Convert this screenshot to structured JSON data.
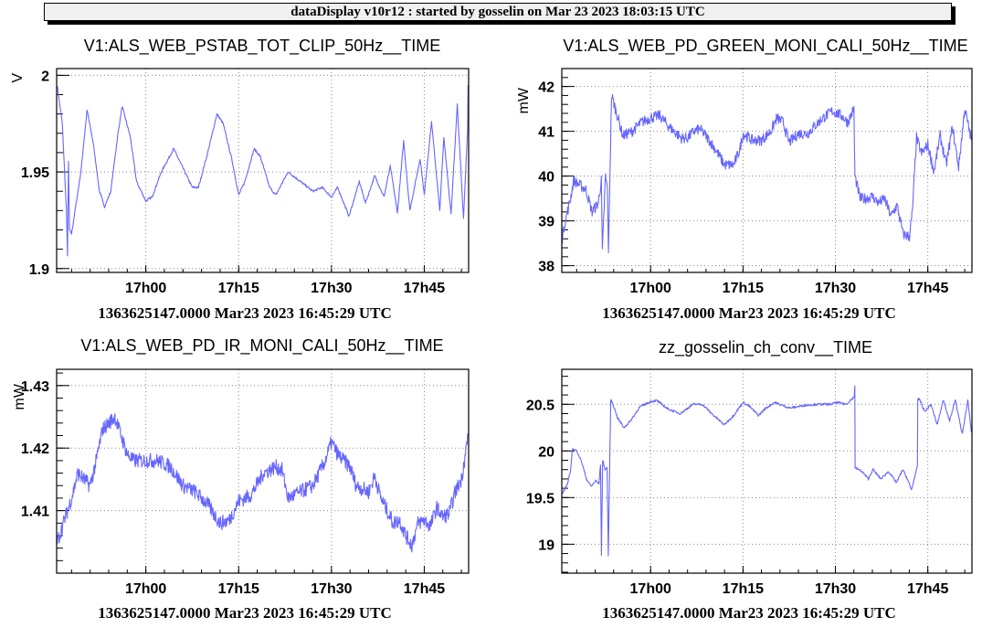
{
  "banner": "dataDisplay v10r12 : started by gosselin on Mar 23 2023 18:03:15 UTC",
  "colors": {
    "series": "#6666ff",
    "grid": "#888888",
    "banner_bg": "#f0f0f0"
  },
  "chart_data": [
    {
      "type": "line",
      "title": "V1:ALS_WEB_PSTAB_TOT_CLIP_50Hz__TIME",
      "ylabel": "V",
      "xlabel": "1363625147.0000 Mar23 2023 16:45:29 UTC",
      "xlim": [
        "16:45:35",
        "17:52:10"
      ],
      "ylim": [
        1.898,
        2.0035
      ],
      "xticks": [
        {
          "t": "17:00:00",
          "label": "17h00"
        },
        {
          "t": "17:15:00",
          "label": "17h15"
        },
        {
          "t": "17:30:00",
          "label": "17h30"
        },
        {
          "t": "17:45:00",
          "label": "17h45"
        }
      ],
      "yticks": [
        {
          "v": 1.9,
          "label": "1.9"
        },
        {
          "v": 1.95,
          "label": "1.95"
        },
        {
          "v": 2.0,
          "label": "2"
        }
      ],
      "yminor": 0.01,
      "grid": true,
      "points": [
        [
          "16:45:40",
          1.995
        ],
        [
          "16:46:30",
          1.975
        ],
        [
          "16:47:10",
          1.93
        ],
        [
          "16:47:20",
          1.907
        ],
        [
          "16:47:30",
          1.955
        ],
        [
          "16:47:40",
          1.92
        ],
        [
          "16:48:00",
          1.918
        ],
        [
          "16:49:30",
          1.95
        ],
        [
          "16:50:30",
          1.982
        ],
        [
          "16:51:30",
          1.965
        ],
        [
          "16:52:30",
          1.94
        ],
        [
          "16:53:20",
          1.932
        ],
        [
          "16:54:20",
          1.94
        ],
        [
          "16:55:30",
          1.97
        ],
        [
          "16:56:10",
          1.984
        ],
        [
          "16:57:30",
          1.968
        ],
        [
          "16:58:30",
          1.945
        ],
        [
          "17:00:00",
          1.935
        ],
        [
          "17:01:00",
          1.937
        ],
        [
          "17:02:30",
          1.95
        ],
        [
          "17:04:30",
          1.962
        ],
        [
          "17:06:00",
          1.952
        ],
        [
          "17:07:30",
          1.942
        ],
        [
          "17:08:30",
          1.942
        ],
        [
          "17:10:00",
          1.96
        ],
        [
          "17:11:30",
          1.98
        ],
        [
          "17:12:30",
          1.975
        ],
        [
          "17:14:00",
          1.955
        ],
        [
          "17:15:00",
          1.938
        ],
        [
          "17:16:00",
          1.945
        ],
        [
          "17:17:30",
          1.962
        ],
        [
          "17:18:30",
          1.958
        ],
        [
          "17:20:00",
          1.942
        ],
        [
          "17:21:00",
          1.938
        ],
        [
          "17:23:00",
          1.95
        ],
        [
          "17:25:00",
          1.945
        ],
        [
          "17:27:00",
          1.94
        ],
        [
          "17:28:30",
          1.942
        ],
        [
          "17:30:00",
          1.937
        ],
        [
          "17:31:00",
          1.942
        ],
        [
          "17:32:50",
          1.927
        ],
        [
          "17:34:30",
          1.945
        ],
        [
          "17:35:30",
          1.934
        ],
        [
          "17:37:00",
          1.948
        ],
        [
          "17:38:30",
          1.937
        ],
        [
          "17:39:30",
          1.953
        ],
        [
          "17:40:40",
          1.929
        ],
        [
          "17:41:40",
          1.966
        ],
        [
          "17:42:40",
          1.93
        ],
        [
          "17:44:20",
          1.957
        ],
        [
          "17:45:00",
          1.938
        ],
        [
          "17:46:10",
          1.976
        ],
        [
          "17:47:30",
          1.93
        ],
        [
          "17:48:10",
          1.968
        ],
        [
          "17:49:20",
          1.928
        ],
        [
          "17:50:20",
          1.985
        ],
        [
          "17:51:20",
          1.926
        ],
        [
          "17:52:00",
          1.972
        ],
        [
          "17:52:05",
          1.995
        ]
      ]
    },
    {
      "type": "line",
      "title": "V1:ALS_WEB_PD_GREEN_MONI_CALI_50Hz__TIME",
      "ylabel": "mW",
      "xlabel": "1363625147.0000 Mar23 2023 16:45:29 UTC",
      "xlim": [
        "16:45:35",
        "17:52:10"
      ],
      "ylim": [
        37.85,
        42.4
      ],
      "xticks": [
        {
          "t": "17:00:00",
          "label": "17h00"
        },
        {
          "t": "17:15:00",
          "label": "17h15"
        },
        {
          "t": "17:30:00",
          "label": "17h30"
        },
        {
          "t": "17:45:00",
          "label": "17h45"
        }
      ],
      "yticks": [
        {
          "v": 38,
          "label": "38"
        },
        {
          "v": 39,
          "label": "39"
        },
        {
          "v": 40,
          "label": "40"
        },
        {
          "v": 41,
          "label": "41"
        },
        {
          "v": 42,
          "label": "42"
        }
      ],
      "yminor": 0.2,
      "grid": true,
      "points": [
        [
          "16:45:40",
          38.6
        ],
        [
          "16:46:00",
          38.9
        ],
        [
          "16:47:00",
          39.5
        ],
        [
          "16:47:30",
          39.9
        ],
        [
          "16:48:30",
          39.8
        ],
        [
          "16:49:30",
          39.7
        ],
        [
          "16:50:30",
          39.2
        ],
        [
          "16:51:30",
          39.4
        ],
        [
          "16:52:00",
          39.9
        ],
        [
          "16:52:10",
          38.3
        ],
        [
          "16:52:40",
          40.0
        ],
        [
          "16:53:00",
          39.7
        ],
        [
          "16:53:10",
          38.2
        ],
        [
          "16:53:20",
          39.6
        ],
        [
          "16:53:40",
          41.8
        ],
        [
          "16:54:30",
          41.4
        ],
        [
          "16:55:30",
          40.9
        ],
        [
          "16:57:00",
          41.0
        ],
        [
          "16:58:30",
          41.2
        ],
        [
          "17:00:00",
          41.3
        ],
        [
          "17:01:30",
          41.35
        ],
        [
          "17:03:00",
          41.1
        ],
        [
          "17:05:00",
          40.85
        ],
        [
          "17:06:00",
          40.85
        ],
        [
          "17:07:00",
          41.0
        ],
        [
          "17:08:00",
          41.05
        ],
        [
          "17:09:00",
          40.9
        ],
        [
          "17:10:30",
          40.6
        ],
        [
          "17:12:00",
          40.25
        ],
        [
          "17:13:30",
          40.25
        ],
        [
          "17:14:30",
          40.6
        ],
        [
          "17:15:00",
          40.95
        ],
        [
          "17:16:30",
          40.8
        ],
        [
          "17:18:00",
          40.8
        ],
        [
          "17:19:30",
          41.0
        ],
        [
          "17:20:30",
          41.3
        ],
        [
          "17:21:30",
          41.2
        ],
        [
          "17:22:30",
          40.75
        ],
        [
          "17:24:00",
          40.95
        ],
        [
          "17:25:30",
          40.95
        ],
        [
          "17:26:30",
          41.1
        ],
        [
          "17:28:00",
          41.3
        ],
        [
          "17:29:30",
          41.45
        ],
        [
          "17:31:00",
          41.35
        ],
        [
          "17:32:00",
          41.2
        ],
        [
          "17:33:00",
          41.5
        ],
        [
          "17:33:10",
          40.0
        ],
        [
          "17:34:00",
          39.5
        ],
        [
          "17:35:00",
          39.5
        ],
        [
          "17:36:00",
          39.55
        ],
        [
          "17:37:00",
          39.4
        ],
        [
          "17:38:00",
          39.5
        ],
        [
          "17:39:00",
          39.1
        ],
        [
          "17:40:00",
          39.35
        ],
        [
          "17:41:00",
          38.7
        ],
        [
          "17:42:00",
          38.65
        ],
        [
          "17:42:30",
          39.2
        ],
        [
          "17:43:10",
          40.85
        ],
        [
          "17:44:00",
          40.5
        ],
        [
          "17:45:00",
          40.7
        ],
        [
          "17:46:00",
          40.1
        ],
        [
          "17:47:00",
          40.9
        ],
        [
          "17:48:00",
          40.25
        ],
        [
          "17:49:00",
          41.1
        ],
        [
          "17:50:00",
          40.2
        ],
        [
          "17:51:00",
          41.5
        ],
        [
          "17:52:05",
          40.8
        ]
      ]
    },
    {
      "type": "line",
      "title": "V1:ALS_WEB_PD_IR_MONI_CALI_50Hz__TIME",
      "ylabel": "mW",
      "xlabel": "1363625147.0000 Mar23 2023 16:45:29 UTC",
      "xlim": [
        "16:45:35",
        "17:52:10"
      ],
      "ylim": [
        1.4,
        1.4326
      ],
      "xticks": [
        {
          "t": "17:00:00",
          "label": "17h00"
        },
        {
          "t": "17:15:00",
          "label": "17h15"
        },
        {
          "t": "17:30:00",
          "label": "17h30"
        },
        {
          "t": "17:45:00",
          "label": "17h45"
        }
      ],
      "yticks": [
        {
          "v": 1.41,
          "label": "1.41"
        },
        {
          "v": 1.42,
          "label": "1.42"
        },
        {
          "v": 1.43,
          "label": "1.43"
        }
      ],
      "yminor": 0.002,
      "grid": true,
      "points": [
        [
          "16:45:40",
          1.405
        ],
        [
          "16:47:00",
          1.409
        ],
        [
          "16:48:00",
          1.412
        ],
        [
          "16:49:00",
          1.416
        ],
        [
          "16:50:00",
          1.415
        ],
        [
          "16:51:00",
          1.414
        ],
        [
          "16:52:00",
          1.418
        ],
        [
          "16:53:00",
          1.423
        ],
        [
          "16:54:00",
          1.424
        ],
        [
          "16:55:00",
          1.425
        ],
        [
          "16:56:00",
          1.422
        ],
        [
          "16:57:00",
          1.419
        ],
        [
          "16:58:00",
          1.418
        ],
        [
          "17:00:00",
          1.418
        ],
        [
          "17:02:00",
          1.418
        ],
        [
          "17:04:00",
          1.417
        ],
        [
          "17:06:00",
          1.414
        ],
        [
          "17:08:00",
          1.413
        ],
        [
          "17:10:00",
          1.411
        ],
        [
          "17:12:00",
          1.408
        ],
        [
          "17:13:30",
          1.4085
        ],
        [
          "17:15:00",
          1.4115
        ],
        [
          "17:17:00",
          1.4125
        ],
        [
          "17:19:00",
          1.416
        ],
        [
          "17:21:00",
          1.417
        ],
        [
          "17:22:00",
          1.4165
        ],
        [
          "17:23:00",
          1.412
        ],
        [
          "17:25:00",
          1.413
        ],
        [
          "17:27:00",
          1.414
        ],
        [
          "17:29:00",
          1.418
        ],
        [
          "17:30:00",
          1.421
        ],
        [
          "17:31:00",
          1.419
        ],
        [
          "17:33:00",
          1.417
        ],
        [
          "17:34:00",
          1.414
        ],
        [
          "17:36:00",
          1.413
        ],
        [
          "17:37:00",
          1.4155
        ],
        [
          "17:38:00",
          1.412
        ],
        [
          "17:39:00",
          1.41
        ],
        [
          "17:40:00",
          1.408
        ],
        [
          "17:41:00",
          1.4085
        ],
        [
          "17:42:00",
          1.406
        ],
        [
          "17:43:00",
          1.4045
        ],
        [
          "17:44:00",
          1.408
        ],
        [
          "17:45:00",
          1.4085
        ],
        [
          "17:46:00",
          1.4075
        ],
        [
          "17:47:00",
          1.4105
        ],
        [
          "17:48:00",
          1.409
        ],
        [
          "17:49:00",
          1.4095
        ],
        [
          "17:50:00",
          1.413
        ],
        [
          "17:51:00",
          1.415
        ],
        [
          "17:52:05",
          1.422
        ]
      ]
    },
    {
      "type": "line",
      "title": "zz_gosselin_ch_conv__TIME",
      "ylabel": "",
      "xlabel": "1363625147.0000 Mar23 2023 16:45:29 UTC",
      "xlim": [
        "16:45:35",
        "17:52:10"
      ],
      "ylim": [
        18.69,
        20.875
      ],
      "xticks": [
        {
          "t": "17:00:00",
          "label": "17h00"
        },
        {
          "t": "17:15:00",
          "label": "17h15"
        },
        {
          "t": "17:30:00",
          "label": "17h30"
        },
        {
          "t": "17:45:00",
          "label": "17h45"
        }
      ],
      "yticks": [
        {
          "v": 19,
          "label": "19"
        },
        {
          "v": 19.5,
          "label": "19.5"
        },
        {
          "v": 20,
          "label": "20"
        },
        {
          "v": 20.5,
          "label": "20.5"
        }
      ],
      "yminor": 0.1,
      "grid": true,
      "points": [
        [
          "16:45:40",
          19.54
        ],
        [
          "16:46:32",
          19.65
        ],
        [
          "16:47:02",
          19.8
        ],
        [
          "16:47:17",
          20.02
        ],
        [
          "16:48:03",
          20.0
        ],
        [
          "16:48:49",
          19.88
        ],
        [
          "16:49:35",
          19.7
        ],
        [
          "16:50:20",
          19.62
        ],
        [
          "16:51:06",
          19.68
        ],
        [
          "16:51:37",
          19.65
        ],
        [
          "16:51:52",
          19.85
        ],
        [
          "16:52:01",
          18.88
        ],
        [
          "16:52:13",
          19.9
        ],
        [
          "16:52:38",
          19.8
        ],
        [
          "16:52:56",
          19.82
        ],
        [
          "16:53:08",
          18.88
        ],
        [
          "16:53:20",
          19.75
        ],
        [
          "16:53:32",
          20.55
        ],
        [
          "16:53:54",
          20.5
        ],
        [
          "16:54:40",
          20.35
        ],
        [
          "16:55:41",
          20.25
        ],
        [
          "16:56:42",
          20.32
        ],
        [
          "16:58:13",
          20.47
        ],
        [
          "17:00:00",
          20.53
        ],
        [
          "17:01:01",
          20.54
        ],
        [
          "17:02:48",
          20.45
        ],
        [
          "17:04:50",
          20.4
        ],
        [
          "17:06:52",
          20.5
        ],
        [
          "17:08:23",
          20.5
        ],
        [
          "17:09:55",
          20.4
        ],
        [
          "17:11:57",
          20.28
        ],
        [
          "17:13:28",
          20.38
        ],
        [
          "17:15:00",
          20.52
        ],
        [
          "17:16:01",
          20.48
        ],
        [
          "17:17:32",
          20.38
        ],
        [
          "17:18:33",
          20.45
        ],
        [
          "17:20:05",
          20.52
        ],
        [
          "17:22:37",
          20.46
        ],
        [
          "17:25:10",
          20.49
        ],
        [
          "17:27:12",
          20.5
        ],
        [
          "17:29:14",
          20.5
        ],
        [
          "17:30:15",
          20.52
        ],
        [
          "17:31:46",
          20.5
        ],
        [
          "17:33:03",
          20.58
        ],
        [
          "17:33:09",
          20.7
        ],
        [
          "17:33:12",
          19.82
        ],
        [
          "17:34:19",
          19.78
        ],
        [
          "17:35:20",
          19.7
        ],
        [
          "17:36:06",
          19.8
        ],
        [
          "17:37:22",
          19.7
        ],
        [
          "17:38:38",
          19.78
        ],
        [
          "17:39:55",
          19.66
        ],
        [
          "17:40:56",
          19.8
        ],
        [
          "17:41:41",
          19.7
        ],
        [
          "17:42:21",
          19.58
        ],
        [
          "17:42:58",
          19.75
        ],
        [
          "17:43:19",
          19.83
        ],
        [
          "17:43:22",
          20.56
        ],
        [
          "17:43:43",
          20.55
        ],
        [
          "17:44:29",
          20.42
        ],
        [
          "17:45:30",
          20.5
        ],
        [
          "17:46:31",
          20.28
        ],
        [
          "17:47:32",
          20.55
        ],
        [
          "17:48:33",
          20.32
        ],
        [
          "17:49:28",
          20.55
        ],
        [
          "17:50:35",
          20.18
        ],
        [
          "17:51:30",
          20.54
        ],
        [
          "17:52:05",
          20.2
        ]
      ]
    }
  ]
}
